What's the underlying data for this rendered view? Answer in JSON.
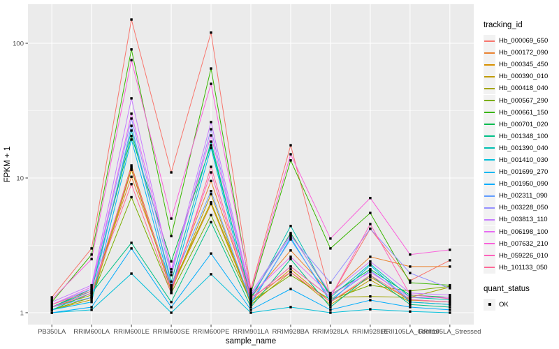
{
  "chart_data": {
    "type": "line",
    "title": "",
    "xlabel": "sample_name",
    "ylabel": "FPKM + 1",
    "y_scale": "log10",
    "ylim": [
      0.82,
      186
    ],
    "y_ticks": [
      {
        "label": "1",
        "value": 1
      },
      {
        "label": "10",
        "value": 10
      },
      {
        "label": "100",
        "value": 100
      }
    ],
    "y_minor_ticks": [
      3.1623,
      31.623
    ],
    "grid": true,
    "legend_position": "right",
    "legend_title": "tracking_id",
    "quant_legend_title": "quant_status",
    "quant_status_label": "OK",
    "point_shape": "filled-square",
    "point_color": "#000000",
    "panel_background": "#EBEBEB",
    "grid_color": "#FFFFFF",
    "tick_label_color": "#4D4D4D",
    "tick_mark_color": "#333333",
    "axis_title_color": "#000000",
    "legend_key_background": "#F2F2F2",
    "categories": [
      "PB350LA",
      "RRIM600LA",
      "RRIM600LE",
      "RRIM600SE",
      "RRIM600PE",
      "RRIM901LA",
      "RRIM928BA",
      "RRIM928LA",
      "RRIM928LE",
      "RRII105LA_Control",
      "RRII105LA_Stressed"
    ],
    "series": [
      {
        "name": "Hb_000069_650",
        "color": "#F8766D",
        "values": [
          1.3,
          3.0,
          150,
          11,
          120,
          1.5,
          17.5,
          1.3,
          4.2,
          1.73,
          2.45
        ]
      },
      {
        "name": "Hb_000172_090",
        "color": "#EA8331",
        "values": [
          1.1,
          1.4,
          10.2,
          1.6,
          9.5,
          1.3,
          2.9,
          1.4,
          2.6,
          2.2,
          2.2
        ]
      },
      {
        "name": "Hb_000345_450",
        "color": "#D89000",
        "values": [
          1.05,
          1.3,
          12.4,
          1.5,
          6.4,
          1.2,
          2.1,
          1.2,
          1.84,
          1.24,
          1.2
        ]
      },
      {
        "name": "Hb_000390_010",
        "color": "#C09B00",
        "values": [
          1.05,
          1.25,
          11.5,
          1.45,
          7.6,
          1.15,
          2.0,
          1.15,
          1.75,
          1.2,
          1.15
        ]
      },
      {
        "name": "Hb_000418_040",
        "color": "#A3A500",
        "values": [
          1.1,
          1.35,
          11.8,
          1.55,
          6.6,
          1.25,
          2.2,
          1.3,
          1.32,
          1.3,
          1.55
        ]
      },
      {
        "name": "Hb_000567_290",
        "color": "#7CAE00",
        "values": [
          1.05,
          1.3,
          7.2,
          1.4,
          5.3,
          1.2,
          1.9,
          1.25,
          1.6,
          1.45,
          1.57
        ]
      },
      {
        "name": "Hb_000661_150",
        "color": "#39B600",
        "values": [
          1.2,
          2.7,
          90,
          3.7,
          65,
          1.4,
          13.5,
          3.0,
          5.5,
          1.67,
          1.6
        ]
      },
      {
        "name": "Hb_000701_020",
        "color": "#00BB4E",
        "values": [
          1.1,
          1.5,
          20.5,
          2.4,
          17.5,
          1.3,
          3.9,
          1.35,
          2.1,
          1.35,
          1.3
        ]
      },
      {
        "name": "Hb_001348_100",
        "color": "#00C087",
        "values": [
          1.05,
          1.4,
          3.3,
          1.2,
          4.7,
          1.1,
          2.5,
          1.1,
          1.9,
          1.15,
          1.1
        ]
      },
      {
        "name": "Hb_001390_040",
        "color": "#00C0B2",
        "values": [
          1.1,
          1.45,
          22.5,
          1.7,
          18.6,
          1.25,
          4.4,
          1.3,
          2.3,
          1.3,
          1.25
        ]
      },
      {
        "name": "Hb_001410_030",
        "color": "#00BFD9",
        "values": [
          1.0,
          1.05,
          1.95,
          1.0,
          1.93,
          1.0,
          1.1,
          1.0,
          1.06,
          1.02,
          1.0
        ]
      },
      {
        "name": "Hb_001699_270",
        "color": "#00B8F1",
        "values": [
          1.05,
          1.2,
          19.3,
          1.5,
          16.7,
          1.15,
          3.6,
          1.2,
          2.25,
          1.2,
          1.15
        ]
      },
      {
        "name": "Hb_001950_090",
        "color": "#00ACFC",
        "values": [
          1.0,
          1.1,
          3.0,
          1.1,
          2.75,
          1.05,
          1.5,
          1.05,
          1.24,
          1.1,
          1.05
        ]
      },
      {
        "name": "Hb_002311_090",
        "color": "#619CFF",
        "values": [
          1.1,
          1.3,
          24.4,
          1.6,
          8.0,
          1.2,
          3.5,
          1.25,
          2.05,
          1.25,
          1.2
        ]
      },
      {
        "name": "Hb_003228_050",
        "color": "#9590FF",
        "values": [
          1.15,
          1.5,
          27.6,
          1.9,
          23.0,
          1.35,
          3.7,
          1.67,
          4.2,
          1.97,
          1.52
        ]
      },
      {
        "name": "Hb_003813_110",
        "color": "#C77CFF",
        "values": [
          1.2,
          1.6,
          39,
          2.0,
          26,
          1.4,
          3.8,
          1.4,
          2.4,
          1.4,
          1.35
        ]
      },
      {
        "name": "Hb_006198_100",
        "color": "#E76BF3",
        "values": [
          1.15,
          1.55,
          30,
          2.1,
          20.7,
          1.35,
          2.6,
          1.35,
          2.0,
          1.3,
          1.3
        ]
      },
      {
        "name": "Hb_007632_210",
        "color": "#FA62DB",
        "values": [
          1.25,
          2.5,
          75,
          5.0,
          50,
          1.45,
          15,
          3.55,
          7.1,
          2.7,
          2.93
        ]
      },
      {
        "name": "Hb_059226_010",
        "color": "#FF62BC",
        "values": [
          1.1,
          1.4,
          12.0,
          1.5,
          11.0,
          1.25,
          2.2,
          1.3,
          4.55,
          1.36,
          1.27
        ]
      },
      {
        "name": "Hb_101133_050",
        "color": "#FF6A98",
        "values": [
          1.15,
          1.45,
          9.0,
          1.4,
          12.1,
          1.3,
          2.0,
          1.2,
          1.9,
          1.25,
          1.2
        ]
      }
    ]
  }
}
